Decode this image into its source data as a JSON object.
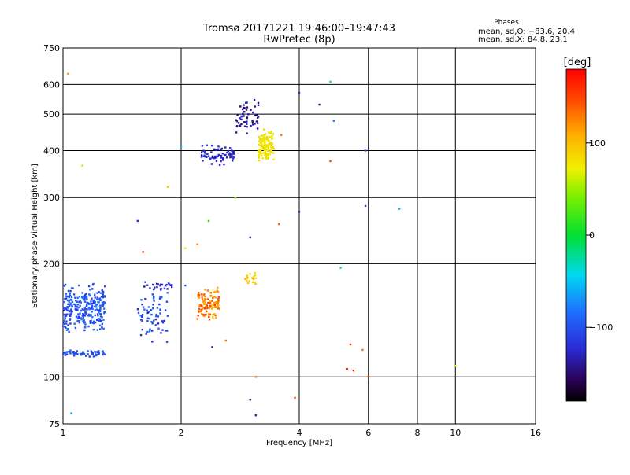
{
  "chart_data": {
    "type": "scatter",
    "title": "Tromsø 20171221 19:46:00–19:47:43",
    "subtitle": "RwPretec (8p)",
    "xlabel": "Frequency [MHz]",
    "ylabel": "Stationary phase Virtual Height [km]",
    "x_scale": "log",
    "y_scale": "log",
    "xlim": [
      1,
      16
    ],
    "ylim": [
      75,
      750
    ],
    "x_ticks": [
      1,
      2,
      4,
      6,
      8,
      10,
      16
    ],
    "y_ticks": [
      75,
      100,
      200,
      300,
      400,
      500,
      600,
      750
    ],
    "grid": true,
    "phase_box": {
      "heading": "Phases",
      "line1": "mean, sd,O: −83.6, 20.4",
      "line2": "mean, sd,X:  84.8, 23.1"
    },
    "colorbar": {
      "label": "[deg]",
      "ticks": [
        "100",
        "0",
        "−100"
      ],
      "tick_values": [
        100,
        0,
        -100
      ],
      "range": [
        -180,
        180
      ]
    },
    "clusters": [
      {
        "x_range": [
          1.0,
          1.28
        ],
        "y_range": [
          130,
          180
        ],
        "phase": [
          -120,
          -80
        ],
        "count": 260
      },
      {
        "x_range": [
          1.0,
          1.28
        ],
        "y_range": [
          113,
          118
        ],
        "phase": [
          -120,
          -85
        ],
        "count": 60
      },
      {
        "x_range": [
          1.55,
          1.85
        ],
        "y_range": [
          120,
          175
        ],
        "phase": [
          -130,
          -80
        ],
        "count": 70
      },
      {
        "x_range": [
          1.6,
          1.9
        ],
        "y_range": [
          168,
          180
        ],
        "phase": [
          -140,
          -110
        ],
        "count": 25
      },
      {
        "x_range": [
          2.2,
          2.5
        ],
        "y_range": [
          140,
          175
        ],
        "phase": [
          100,
          160
        ],
        "count": 110
      },
      {
        "x_range": [
          2.9,
          3.1
        ],
        "y_range": [
          175,
          190
        ],
        "phase": [
          75,
          110
        ],
        "count": 20
      },
      {
        "x_range": [
          2.25,
          2.75
        ],
        "y_range": [
          360,
          420
        ],
        "phase": [
          -140,
          -110
        ],
        "count": 70
      },
      {
        "x_range": [
          2.75,
          3.15
        ],
        "y_range": [
          430,
          560
        ],
        "phase": [
          -160,
          -120
        ],
        "count": 55
      },
      {
        "x_range": [
          3.15,
          3.45
        ],
        "y_range": [
          370,
          460
        ],
        "phase": [
          65,
          90
        ],
        "count": 130
      }
    ],
    "points": [
      {
        "x": 1.03,
        "y": 640,
        "phase": 120
      },
      {
        "x": 1.05,
        "y": 80,
        "phase": -60
      },
      {
        "x": 1.12,
        "y": 365,
        "phase": 60
      },
      {
        "x": 1.85,
        "y": 320,
        "phase": 90
      },
      {
        "x": 1.55,
        "y": 260,
        "phase": -120
      },
      {
        "x": 1.6,
        "y": 215,
        "phase": 160
      },
      {
        "x": 2.05,
        "y": 220,
        "phase": 70
      },
      {
        "x": 2.2,
        "y": 225,
        "phase": 130
      },
      {
        "x": 2.35,
        "y": 260,
        "phase": 20
      },
      {
        "x": 2.75,
        "y": 300,
        "phase": 40
      },
      {
        "x": 3.0,
        "y": 235,
        "phase": -150
      },
      {
        "x": 2.0,
        "y": 410,
        "phase": -60
      },
      {
        "x": 2.05,
        "y": 175,
        "phase": -90
      },
      {
        "x": 2.4,
        "y": 120,
        "phase": -140
      },
      {
        "x": 2.6,
        "y": 125,
        "phase": 130
      },
      {
        "x": 3.1,
        "y": 100,
        "phase": 130
      },
      {
        "x": 3.0,
        "y": 87,
        "phase": -160
      },
      {
        "x": 3.1,
        "y": 79,
        "phase": -130
      },
      {
        "x": 3.6,
        "y": 440,
        "phase": 130
      },
      {
        "x": 3.55,
        "y": 255,
        "phase": 140
      },
      {
        "x": 3.9,
        "y": 88,
        "phase": 150
      },
      {
        "x": 4.0,
        "y": 570,
        "phase": -120
      },
      {
        "x": 4.0,
        "y": 275,
        "phase": -130
      },
      {
        "x": 4.5,
        "y": 530,
        "phase": -140
      },
      {
        "x": 4.8,
        "y": 610,
        "phase": -20
      },
      {
        "x": 4.9,
        "y": 480,
        "phase": -90
      },
      {
        "x": 4.8,
        "y": 375,
        "phase": 150
      },
      {
        "x": 5.1,
        "y": 195,
        "phase": -30
      },
      {
        "x": 5.4,
        "y": 122,
        "phase": 150
      },
      {
        "x": 5.3,
        "y": 105,
        "phase": 160
      },
      {
        "x": 5.5,
        "y": 104,
        "phase": 170
      },
      {
        "x": 5.8,
        "y": 118,
        "phase": 130
      },
      {
        "x": 5.9,
        "y": 400,
        "phase": -100
      },
      {
        "x": 5.9,
        "y": 285,
        "phase": -110
      },
      {
        "x": 6.0,
        "y": 100,
        "phase": 150
      },
      {
        "x": 7.2,
        "y": 280,
        "phase": -60
      },
      {
        "x": 10.0,
        "y": 107,
        "phase": 70
      }
    ]
  }
}
